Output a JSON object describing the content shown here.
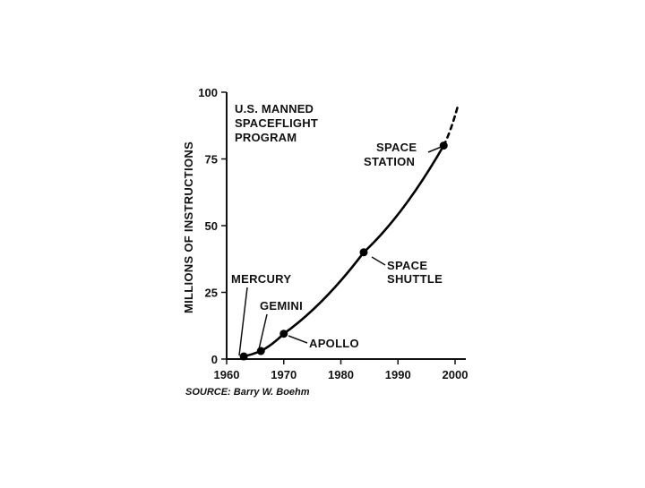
{
  "chart_data": {
    "type": "line",
    "title_lines": [
      "U.S. MANNED",
      "SPACEFLIGHT",
      "PROGRAM"
    ],
    "xlabel": "",
    "ylabel": "MILLIONS OF INSTRUCTIONS",
    "xlim": [
      1960,
      2000
    ],
    "ylim": [
      0,
      100
    ],
    "x_ticks": [
      1960,
      1970,
      1980,
      1990,
      2000
    ],
    "y_ticks": [
      0,
      25,
      50,
      75,
      100
    ],
    "grid": false,
    "series": [
      {
        "x": [
          1963,
          1966,
          1970,
          1984,
          1998
        ],
        "y": [
          1,
          3,
          9.5,
          40,
          80
        ],
        "style": "solid",
        "color": "#000000"
      },
      {
        "x": [
          1998,
          2000.5
        ],
        "y": [
          80,
          95
        ],
        "style": "dashed",
        "color": "#000000"
      }
    ],
    "points": [
      {
        "x": 1963,
        "y": 1
      },
      {
        "x": 1966,
        "y": 3
      },
      {
        "x": 1970,
        "y": 9.5
      },
      {
        "x": 1984,
        "y": 40
      },
      {
        "x": 1998,
        "y": 80
      }
    ],
    "annotations": [
      {
        "lines": [
          "MERCURY"
        ]
      },
      {
        "lines": [
          "GEMINI"
        ]
      },
      {
        "lines": [
          "APOLLO"
        ]
      },
      {
        "lines": [
          "SPACE",
          "SHUTTLE"
        ]
      },
      {
        "lines": [
          "SPACE",
          "STATION"
        ]
      }
    ],
    "source": "SOURCE: Barry W. Boehm"
  }
}
